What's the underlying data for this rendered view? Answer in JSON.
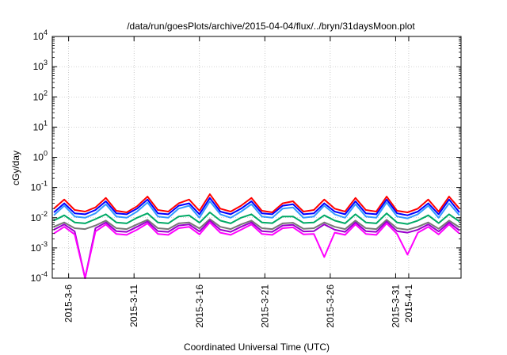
{
  "chart_data": {
    "type": "line",
    "title": "/data/run/goesPlots/archive/2015-04-04/flux/../bryn/31daysMoon.plot",
    "xlabel": "Coordinated Universal Time (UTC)",
    "ylabel": "cGy/day",
    "yscale": "log",
    "ylim": [
      0.0001,
      10000
    ],
    "xlim": [
      "2015-03-04T18:00",
      "2015-04-05T00:00"
    ],
    "grid": true,
    "y_ticks": [
      {
        "base": "10",
        "exp": "-4"
      },
      {
        "base": "10",
        "exp": "-3"
      },
      {
        "base": "10",
        "exp": "-2"
      },
      {
        "base": "10",
        "exp": "-1"
      },
      {
        "base": "10",
        "exp": "0"
      },
      {
        "base": "10",
        "exp": "1"
      },
      {
        "base": "10",
        "exp": "2"
      },
      {
        "base": "10",
        "exp": "3"
      },
      {
        "base": "10",
        "exp": "4"
      }
    ],
    "x_ticks": [
      {
        "label": "2015-3-6",
        "date": "2015-03-06"
      },
      {
        "label": "2015-3-11",
        "date": "2015-03-11"
      },
      {
        "label": "2015-3-16",
        "date": "2015-03-16"
      },
      {
        "label": "2015-3-21",
        "date": "2015-03-21"
      },
      {
        "label": "2015-3-26",
        "date": "2015-03-26"
      },
      {
        "label": "2015-3-31",
        "date": "2015-03-31"
      },
      {
        "label": "2015-4-1",
        "date": "2015-04-01"
      }
    ],
    "series": [
      {
        "color": "#ff0000",
        "values": [
          0.02,
          0.04,
          0.018,
          0.016,
          0.022,
          0.045,
          0.017,
          0.015,
          0.024,
          0.05,
          0.018,
          0.016,
          0.03,
          0.04,
          0.017,
          0.06,
          0.02,
          0.016,
          0.025,
          0.045,
          0.017,
          0.015,
          0.03,
          0.035,
          0.016,
          0.018,
          0.04,
          0.02,
          0.016,
          0.045,
          0.018,
          0.016,
          0.05,
          0.017,
          0.015,
          0.02,
          0.04,
          0.016,
          0.05,
          0.02
        ]
      },
      {
        "color": "#0000ff",
        "values": [
          0.015,
          0.03,
          0.014,
          0.013,
          0.018,
          0.035,
          0.014,
          0.013,
          0.02,
          0.04,
          0.014,
          0.013,
          0.025,
          0.03,
          0.013,
          0.045,
          0.016,
          0.013,
          0.02,
          0.035,
          0.014,
          0.013,
          0.025,
          0.028,
          0.013,
          0.014,
          0.03,
          0.016,
          0.013,
          0.035,
          0.014,
          0.013,
          0.04,
          0.014,
          0.012,
          0.016,
          0.03,
          0.013,
          0.04,
          0.015
        ]
      },
      {
        "color": "#3399ff",
        "values": [
          0.012,
          0.025,
          0.011,
          0.01,
          0.014,
          0.028,
          0.011,
          0.01,
          0.016,
          0.032,
          0.011,
          0.01,
          0.02,
          0.025,
          0.01,
          0.035,
          0.013,
          0.01,
          0.016,
          0.028,
          0.011,
          0.01,
          0.02,
          0.022,
          0.01,
          0.011,
          0.025,
          0.013,
          0.01,
          0.028,
          0.011,
          0.01,
          0.032,
          0.011,
          0.0095,
          0.013,
          0.025,
          0.01,
          0.03,
          0.012
        ]
      },
      {
        "color": "#00aa66",
        "values": [
          0.008,
          0.012,
          0.007,
          0.0065,
          0.009,
          0.013,
          0.007,
          0.0065,
          0.01,
          0.014,
          0.007,
          0.0065,
          0.011,
          0.012,
          0.0068,
          0.015,
          0.008,
          0.0065,
          0.01,
          0.013,
          0.007,
          0.0066,
          0.011,
          0.011,
          0.0067,
          0.007,
          0.012,
          0.008,
          0.0065,
          0.013,
          0.007,
          0.0065,
          0.014,
          0.007,
          0.0062,
          0.008,
          0.012,
          0.0066,
          0.013,
          0.0075
        ]
      },
      {
        "color": "#777777",
        "values": [
          0.005,
          0.007,
          0.0045,
          0.0042,
          0.0055,
          0.008,
          0.0045,
          0.0042,
          0.006,
          0.0085,
          0.0045,
          0.0042,
          0.0065,
          0.007,
          0.0044,
          0.009,
          0.005,
          0.0042,
          0.006,
          0.008,
          0.0045,
          0.0042,
          0.0065,
          0.0068,
          0.0043,
          0.0045,
          0.007,
          0.005,
          0.0042,
          0.008,
          0.0045,
          0.0042,
          0.0085,
          0.0045,
          0.004,
          0.005,
          0.007,
          0.0043,
          0.008,
          0.0048
        ]
      },
      {
        "color": "#9900cc",
        "values": [
          0.004,
          0.006,
          0.0035,
          0.0001,
          0.0045,
          0.007,
          0.0036,
          0.0034,
          0.005,
          0.0075,
          0.0036,
          0.0034,
          0.0055,
          0.006,
          0.0035,
          0.008,
          0.004,
          0.0034,
          0.005,
          0.007,
          0.0036,
          0.0034,
          0.0055,
          0.0058,
          0.0035,
          0.0036,
          0.006,
          0.004,
          0.0034,
          0.007,
          0.0036,
          0.0034,
          0.0075,
          0.0036,
          0.0032,
          0.004,
          0.006,
          0.0035,
          0.007,
          0.0038
        ]
      },
      {
        "color": "#ff00ff",
        "values": [
          0.003,
          0.005,
          0.0028,
          0.0001,
          0.0035,
          0.006,
          0.0029,
          0.0027,
          0.004,
          0.0065,
          0.0029,
          0.0027,
          0.0045,
          0.005,
          0.0028,
          0.007,
          0.0032,
          0.0027,
          0.004,
          0.006,
          0.0029,
          0.0027,
          0.0045,
          0.0048,
          0.0028,
          0.0029,
          0.0005,
          0.0032,
          0.0027,
          0.006,
          0.0029,
          0.0027,
          0.0065,
          0.0029,
          0.0006,
          0.0032,
          0.005,
          0.0028,
          0.006,
          0.003
        ]
      }
    ]
  }
}
